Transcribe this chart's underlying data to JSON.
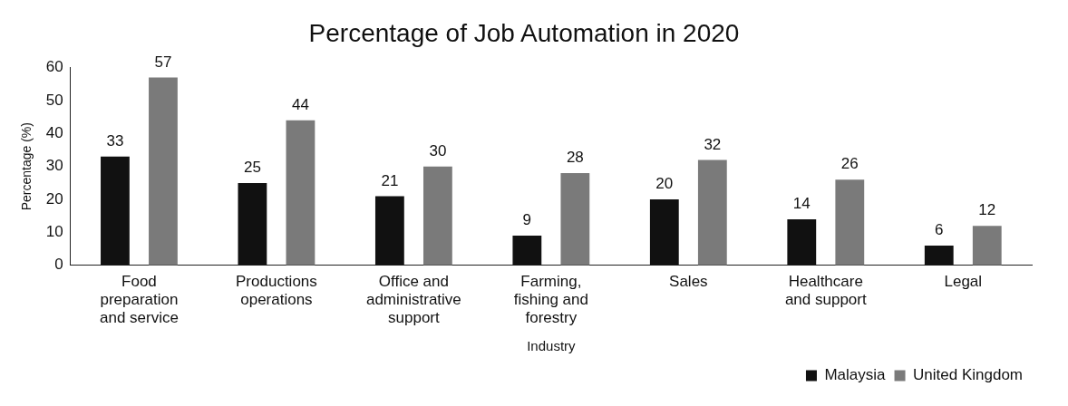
{
  "chart_data": {
    "type": "bar",
    "title": "Percentage of Job Automation in 2020",
    "xlabel": "Industry",
    "ylabel": "Percentage (%)",
    "categories": [
      "Food preparation and service",
      "Productions operations",
      "Office and administrative support",
      "Farming, fishing and forestry",
      "Sales",
      "Healthcare and support",
      "Legal"
    ],
    "series": [
      {
        "name": "Malaysia",
        "color": "#111111",
        "values": [
          33,
          25,
          21,
          9,
          20,
          14,
          6
        ]
      },
      {
        "name": "United Kingdom",
        "color": "#7a7a7a",
        "values": [
          57,
          44,
          30,
          28,
          32,
          26,
          12
        ]
      }
    ],
    "ylim": [
      0,
      60
    ],
    "yticks": [
      0,
      10,
      20,
      30,
      40,
      50,
      60
    ],
    "grid": false,
    "legend": "bottom right",
    "data_labels": true
  }
}
